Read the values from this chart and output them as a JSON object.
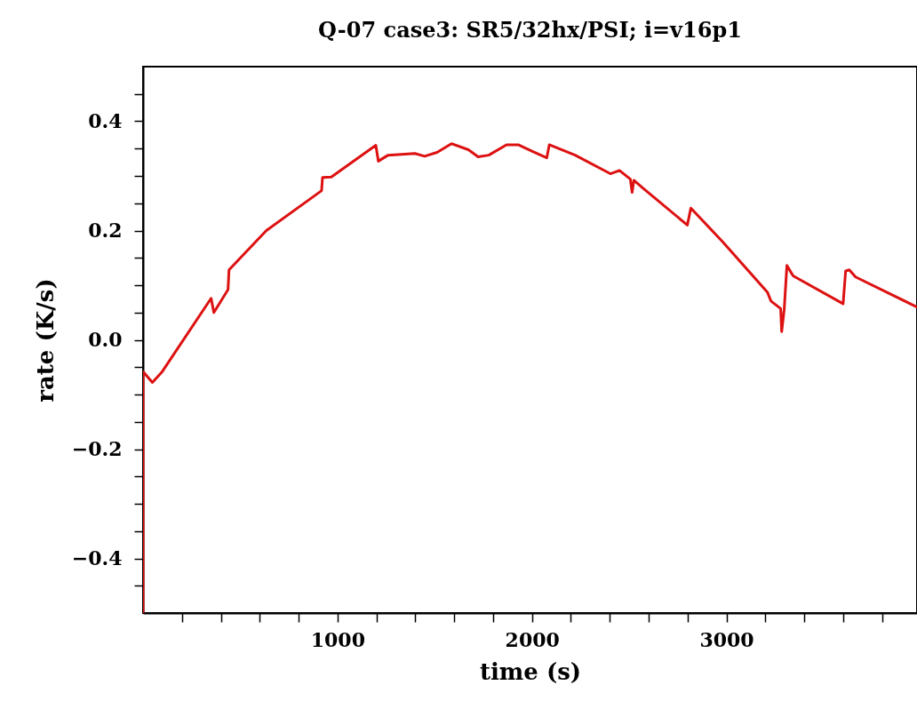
{
  "chart_data": {
    "type": "line",
    "title": "Q-07 case3: SR5/32hx/PSI; i=v16p1",
    "xlabel": "time (s)",
    "ylabel": "rate (K/s)",
    "xlim": [
      0,
      3980
    ],
    "ylim": [
      -0.5,
      0.5
    ],
    "xticks": [
      {
        "value": 200,
        "label": null
      },
      {
        "value": 400,
        "label": null
      },
      {
        "value": 600,
        "label": null
      },
      {
        "value": 800,
        "label": null
      },
      1000,
      {
        "value": 1200,
        "label": null
      },
      {
        "value": 1400,
        "label": null
      },
      {
        "value": 1600,
        "label": null
      },
      {
        "value": 1800,
        "label": null
      },
      2000,
      {
        "value": 2200,
        "label": null
      },
      {
        "value": 2400,
        "label": null
      },
      {
        "value": 2600,
        "label": null
      },
      {
        "value": 2800,
        "label": null
      },
      3000,
      {
        "value": 3200,
        "label": null
      },
      {
        "value": 3400,
        "label": null
      },
      {
        "value": 3600,
        "label": null
      },
      {
        "value": 3800,
        "label": null
      }
    ],
    "yticks": [
      {
        "value": -0.45,
        "label": null
      },
      {
        "value": -0.4,
        "label": "−0.4"
      },
      {
        "value": -0.35,
        "label": null
      },
      {
        "value": -0.3,
        "label": null
      },
      {
        "value": -0.25,
        "label": null
      },
      {
        "value": -0.2,
        "label": "−0.2"
      },
      {
        "value": -0.15,
        "label": null
      },
      {
        "value": -0.1,
        "label": null
      },
      {
        "value": -0.05,
        "label": null
      },
      {
        "value": 0,
        "label": "0.0"
      },
      {
        "value": 0.05,
        "label": null
      },
      {
        "value": 0.1,
        "label": null
      },
      {
        "value": 0.15,
        "label": null
      },
      {
        "value": 0.2,
        "label": "0.2"
      },
      {
        "value": 0.25,
        "label": null
      },
      {
        "value": 0.3,
        "label": null
      },
      {
        "value": 0.35,
        "label": null
      },
      {
        "value": 0.4,
        "label": "0.4"
      },
      {
        "value": 0.45,
        "label": null
      }
    ],
    "grid": false,
    "series": [
      {
        "color": "#dd1111",
        "x": [
          0,
          0,
          48,
          99,
          350,
          364,
          437,
          442,
          634,
          918,
          923,
          968,
          1197,
          1210,
          1260,
          1398,
          1448,
          1512,
          1586,
          1673,
          1723,
          1778,
          1869,
          1929,
          2007,
          2076,
          2089,
          2222,
          2403,
          2450,
          2506,
          2515,
          2524,
          2570,
          2799,
          2817,
          2982,
          3211,
          3229,
          3279,
          3284,
          3297,
          3311,
          3343,
          3600,
          3613,
          3632,
          3664,
          3980
        ],
        "values": [
          -0.5,
          -0.058,
          -0.078,
          -0.058,
          0.076,
          0.05,
          0.092,
          0.128,
          0.2,
          0.273,
          0.297,
          0.298,
          0.356,
          0.327,
          0.338,
          0.341,
          0.336,
          0.343,
          0.359,
          0.348,
          0.335,
          0.338,
          0.357,
          0.357,
          0.344,
          0.333,
          0.357,
          0.338,
          0.304,
          0.31,
          0.294,
          0.27,
          0.292,
          0.278,
          0.21,
          0.241,
          0.179,
          0.087,
          0.071,
          0.057,
          0.015,
          0.055,
          0.136,
          0.117,
          0.066,
          0.126,
          0.128,
          0.115,
          0.06
        ]
      }
    ]
  }
}
